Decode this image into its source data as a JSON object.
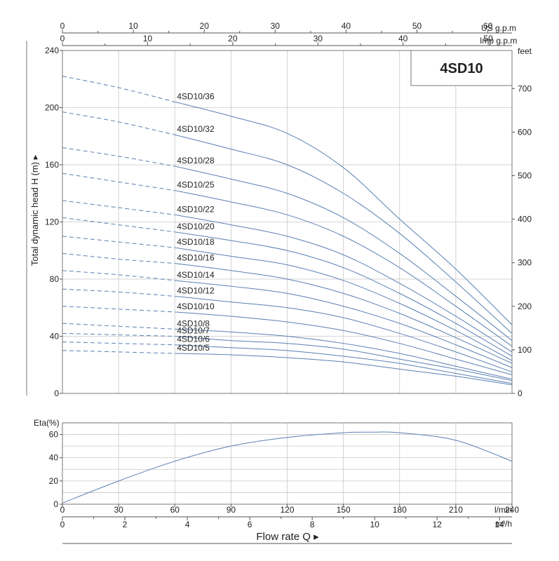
{
  "chart_data": [
    {
      "type": "line",
      "title": "4SD10",
      "ylabel": "Total dynamic head H (m)",
      "ylim": [
        0,
        240
      ],
      "y_ticks": [
        0,
        40,
        80,
        120,
        160,
        200,
        240
      ],
      "y2_label": "feet",
      "y2_ticks": [
        0,
        100,
        200,
        300,
        400,
        500,
        600,
        700
      ],
      "top_axis_1": {
        "label": "US g.p.m",
        "ticks": [
          0,
          10,
          20,
          30,
          40,
          50,
          60
        ]
      },
      "top_axis_2": {
        "label": "Imp g.p.m",
        "ticks": [
          0,
          10,
          20,
          30,
          40,
          50
        ]
      },
      "x_unit": "l/min",
      "xlim": [
        0,
        240
      ],
      "x": [
        0,
        30,
        60,
        90,
        120,
        150,
        180,
        210,
        240
      ],
      "dashed_until_x": 60,
      "series": [
        {
          "name": "4SD10/36",
          "values": [
            222,
            214,
            204,
            194,
            182,
            158,
            122,
            87,
            48
          ]
        },
        {
          "name": "4SD10/32",
          "values": [
            197,
            190,
            181,
            171,
            160,
            140,
            112,
            78,
            42
          ]
        },
        {
          "name": "4SD10/28",
          "values": [
            172,
            166,
            159,
            150,
            140,
            123,
            98,
            68,
            37
          ]
        },
        {
          "name": "4SD10/25",
          "values": [
            154,
            148,
            142,
            134,
            125,
            110,
            88,
            61,
            33
          ]
        },
        {
          "name": "4SD10/22",
          "values": [
            135,
            130,
            125,
            118,
            110,
            97,
            77,
            54,
            29
          ]
        },
        {
          "name": "4SD10/20",
          "values": [
            123,
            118,
            113,
            107,
            100,
            88,
            70,
            49,
            26
          ]
        },
        {
          "name": "4SD10/18",
          "values": [
            110,
            106,
            102,
            96,
            90,
            79,
            63,
            44,
            23
          ]
        },
        {
          "name": "4SD10/16",
          "values": [
            98,
            94,
            91,
            86,
            80,
            70,
            56,
            39,
            21
          ]
        },
        {
          "name": "4SD10/14",
          "values": [
            86,
            83,
            79,
            75,
            70,
            61,
            49,
            34,
            18
          ]
        },
        {
          "name": "4SD10/12",
          "values": [
            73,
            71,
            68,
            64,
            60,
            53,
            42,
            29,
            15
          ]
        },
        {
          "name": "4SD10/10",
          "values": [
            61,
            59,
            57,
            54,
            50,
            44,
            35,
            24,
            13
          ]
        },
        {
          "name": "4SD10/8",
          "values": [
            49,
            47,
            45,
            43,
            40,
            35,
            28,
            19,
            10
          ]
        },
        {
          "name": "4SD10/7",
          "values": [
            42,
            41,
            40,
            37,
            35,
            31,
            24,
            17,
            9
          ]
        },
        {
          "name": "4SD10/6",
          "values": [
            36,
            35,
            34,
            32,
            30,
            26,
            21,
            14,
            7
          ]
        },
        {
          "name": "4SD10/5",
          "values": [
            30,
            29,
            28,
            27,
            25,
            22,
            17,
            12,
            6
          ]
        }
      ]
    },
    {
      "type": "line",
      "ylabel": "Eta(%)",
      "ylim": [
        0,
        70
      ],
      "y_ticks": [
        0,
        20,
        40,
        60
      ],
      "xlabel": "Flow rate Q",
      "x_unit": "l/min",
      "x_ticks": [
        0,
        30,
        60,
        90,
        120,
        150,
        180,
        210,
        240
      ],
      "x2_unit": "m³/h",
      "x2_ticks": [
        0,
        2,
        4,
        6,
        8,
        10,
        12,
        14
      ],
      "xlim": [
        0,
        240
      ],
      "x": [
        0,
        30,
        60,
        90,
        120,
        150,
        165,
        180,
        210,
        240
      ],
      "series": [
        {
          "values": [
            1,
            20,
            37,
            50,
            57.5,
            61.5,
            62,
            61.5,
            55,
            37
          ]
        }
      ]
    }
  ]
}
